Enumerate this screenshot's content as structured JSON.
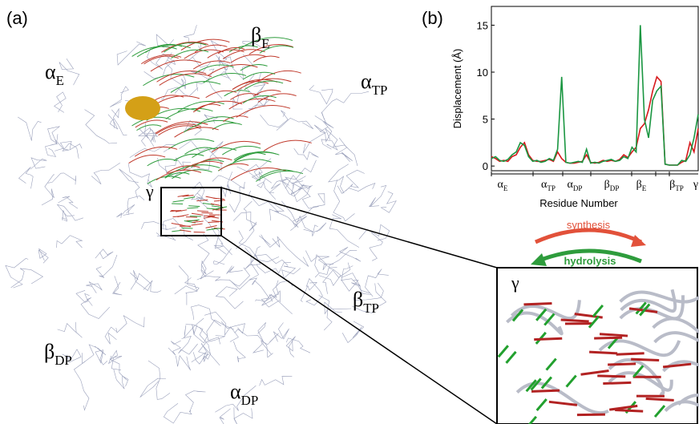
{
  "panels": {
    "a": "(a)",
    "b": "(b)"
  },
  "structure_labels": [
    {
      "base": "β",
      "sub": "E"
    },
    {
      "base": "α",
      "sub": "E"
    },
    {
      "base": "α",
      "sub": "TP"
    },
    {
      "base": "β",
      "sub": "TP"
    },
    {
      "base": "β",
      "sub": "DP"
    },
    {
      "base": "α",
      "sub": "DP"
    }
  ],
  "gamma_label": "γ",
  "inset": {
    "label": "γ",
    "synthesis": "synthesis",
    "hydrolysis": "hydrolysis"
  },
  "chart_data": {
    "type": "line",
    "x_label": "Residue Number",
    "y_label": "Displacement (Å)",
    "x": [
      0,
      2,
      4,
      6,
      8,
      10,
      12,
      14,
      16,
      18,
      20,
      22,
      24,
      26,
      28,
      30,
      32,
      34,
      36,
      38,
      40,
      42,
      44,
      46,
      48,
      50,
      52,
      54,
      56,
      58,
      60,
      62,
      64,
      66,
      68,
      70,
      72,
      74,
      76,
      78,
      80,
      82,
      84,
      86,
      88,
      90,
      92,
      94,
      96,
      98,
      100
    ],
    "xlim": [
      0,
      100
    ],
    "ylim": [
      -0.5,
      17
    ],
    "yticks": [
      0,
      5,
      10,
      15
    ],
    "series": [
      {
        "color": "#d7191c",
        "values": [
          1,
          0.8,
          0.5,
          0.6,
          0.5,
          1,
          1.2,
          2,
          2.5,
          1.2,
          0.6,
          0.5,
          0.5,
          0.6,
          0.7,
          0.5,
          1.5,
          0.8,
          0.4,
          0.3,
          0.3,
          0.4,
          0.5,
          1.2,
          0.4,
          0.3,
          0.4,
          0.6,
          0.5,
          0.6,
          0.5,
          0.7,
          1.2,
          0.9,
          1.5,
          2,
          4,
          4.5,
          6,
          8,
          9.5,
          9,
          0.2,
          0.1,
          0.1,
          0.1,
          0.4,
          0.6,
          2.5,
          1.5,
          4
        ]
      },
      {
        "color": "#1a9641",
        "values": [
          0.8,
          1,
          0.6,
          0.5,
          0.7,
          1.2,
          1.5,
          2.5,
          2.2,
          1,
          0.5,
          0.6,
          0.4,
          0.5,
          0.8,
          0.6,
          1.8,
          9.5,
          0.4,
          0.3,
          0.4,
          0.5,
          0.4,
          1.8,
          0.3,
          0.4,
          0.3,
          0.5,
          0.6,
          0.7,
          0.5,
          0.6,
          1,
          0.8,
          2,
          1.5,
          15,
          5,
          3,
          7,
          8,
          8.5,
          0.2,
          0.1,
          0.1,
          0.1,
          0.6,
          0.5,
          1.2,
          3,
          5.5
        ]
      }
    ],
    "segment_labels": [
      {
        "base": "α",
        "sub": "E"
      },
      {
        "base": "α",
        "sub": "TP"
      },
      {
        "base": "α",
        "sub": "DP"
      },
      {
        "base": "β",
        "sub": "DP"
      },
      {
        "base": "β",
        "sub": "E"
      },
      {
        "base": "β",
        "sub": "TP"
      },
      {
        "base": "γ",
        "sub": ""
      }
    ]
  }
}
